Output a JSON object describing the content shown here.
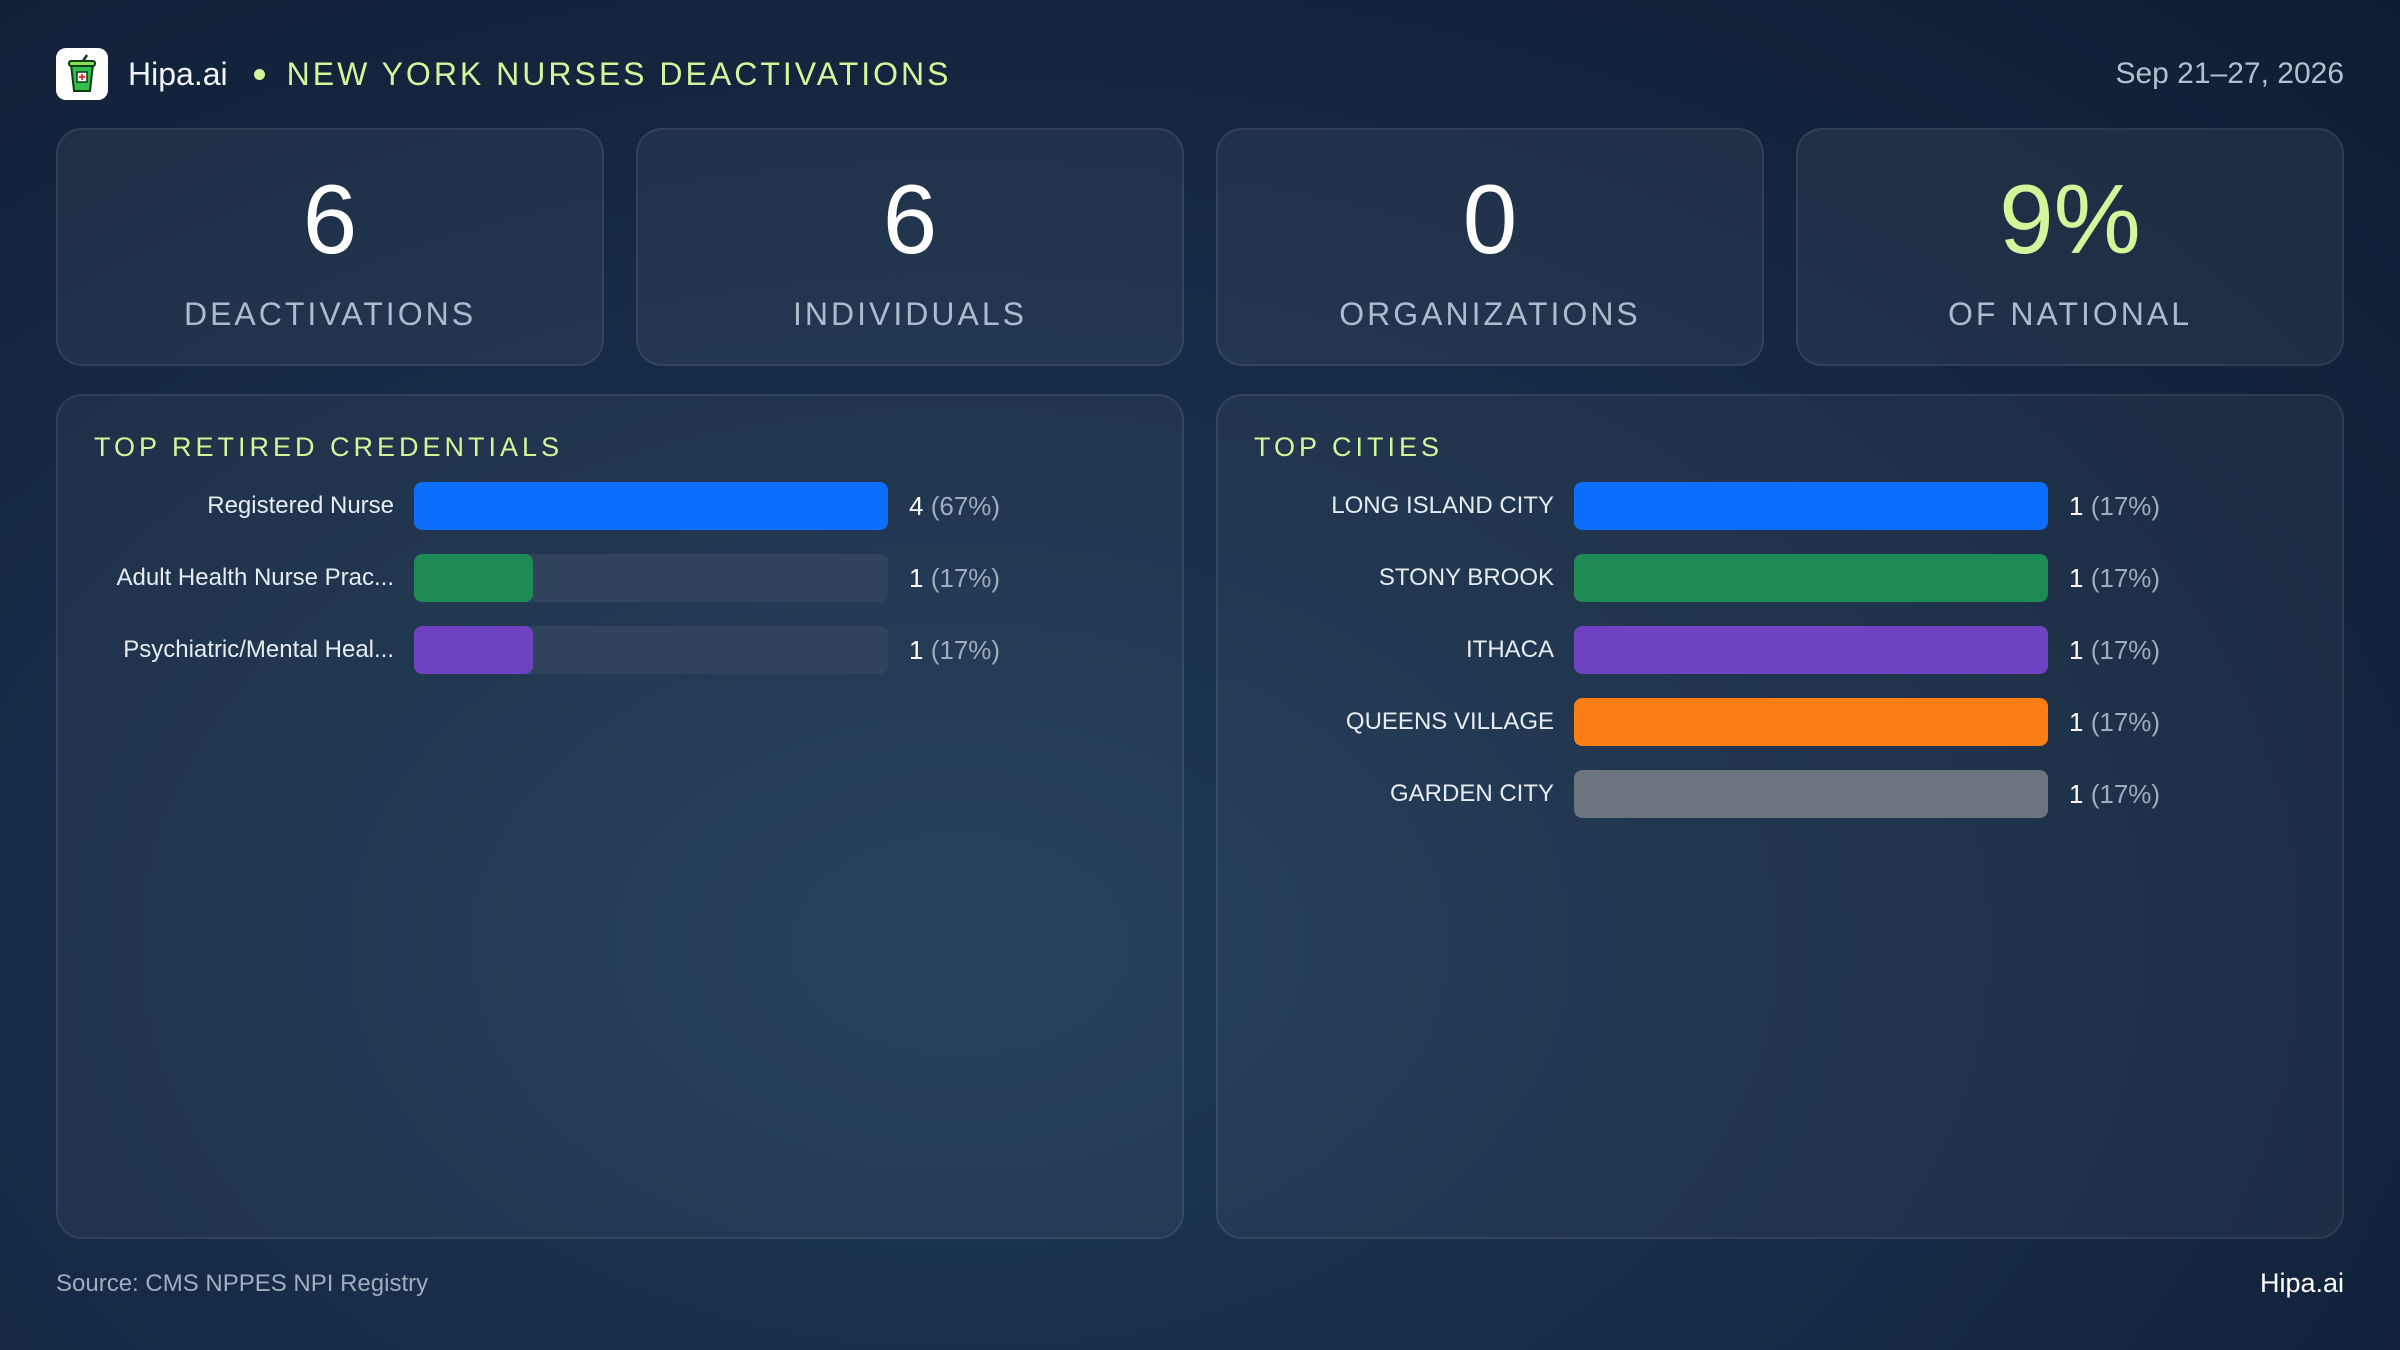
{
  "header": {
    "brand": "Hipa.ai",
    "title": "NEW YORK NURSES DEACTIVATIONS",
    "date": "Sep 21–27, 2026"
  },
  "kpis": [
    {
      "value": "6",
      "label": "DEACTIVATIONS"
    },
    {
      "value": "6",
      "label": "INDIVIDUALS"
    },
    {
      "value": "0",
      "label": "ORGANIZATIONS"
    },
    {
      "value": "9%",
      "label": "OF NATIONAL"
    }
  ],
  "chart_data": [
    {
      "type": "bar",
      "orientation": "horizontal",
      "title": "TOP RETIRED CREDENTIALS",
      "categories": [
        "Registered Nurse",
        "Adult Health Nurse Prac...",
        "Psychiatric/Mental Heal..."
      ],
      "values": [
        4,
        1,
        1
      ],
      "percent_labels": [
        "(67%)",
        "(17%)",
        "(17%)"
      ],
      "colors": [
        "#0d6efd",
        "#1e8a54",
        "#6f42c1"
      ],
      "xlim": [
        0,
        4
      ]
    },
    {
      "type": "bar",
      "orientation": "horizontal",
      "title": "TOP CITIES",
      "categories": [
        "LONG ISLAND CITY",
        "STONY BROOK",
        "ITHACA",
        "QUEENS VILLAGE",
        "GARDEN CITY"
      ],
      "values": [
        1,
        1,
        1,
        1,
        1
      ],
      "percent_labels": [
        "(17%)",
        "(17%)",
        "(17%)",
        "(17%)",
        "(17%)"
      ],
      "colors": [
        "#0d6efd",
        "#1e8a54",
        "#6f42c1",
        "#fd7e14",
        "#6c757d"
      ],
      "xlim": [
        0,
        1
      ]
    }
  ],
  "footer": {
    "source": "Source: CMS NPPES NPI Registry",
    "brand": "Hipa.ai"
  },
  "colors": {
    "accent": "#d4f59a"
  }
}
